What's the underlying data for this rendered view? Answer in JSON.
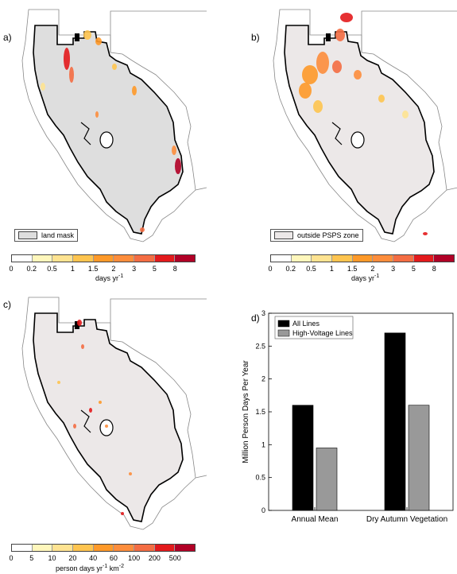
{
  "panels": {
    "a": {
      "label": "a)",
      "legend": "land mask",
      "ticks": [
        "0",
        "0.2",
        "0.5",
        "1",
        "1.5",
        "2",
        "3",
        "5",
        "8"
      ],
      "unit": "days yr",
      "unit_sup": "-1",
      "colors": [
        "#ffffff",
        "#fff7bc",
        "#fee391",
        "#fec44f",
        "#fe9929",
        "#fd8d3c",
        "#f46d43",
        "#e31a1c",
        "#b10026"
      ],
      "mask_color": "#dedede"
    },
    "b": {
      "label": "b)",
      "legend": "outside PSPS zone",
      "ticks": [
        "0",
        "0.2",
        "0.5",
        "1",
        "1.5",
        "2",
        "3",
        "5",
        "8"
      ],
      "unit": "days yr",
      "unit_sup": "-1",
      "colors": [
        "#ffffff",
        "#fff7bc",
        "#fee391",
        "#fec44f",
        "#fe9929",
        "#fd8d3c",
        "#f46d43",
        "#e31a1c",
        "#b10026"
      ],
      "mask_color": "#ece8e8"
    },
    "c": {
      "label": "c)",
      "ticks": [
        "0",
        "5",
        "10",
        "20",
        "40",
        "60",
        "100",
        "200",
        "500"
      ],
      "unit_prefix": "person days yr",
      "unit_sup1": "-1",
      "unit_mid": " km",
      "unit_sup2": "-2",
      "colors": [
        "#ffffff",
        "#fff7bc",
        "#fee391",
        "#fec44f",
        "#fe9929",
        "#fd8d3c",
        "#f46d43",
        "#e31a1c",
        "#b10026"
      ],
      "mask_color": "#ece8e8"
    },
    "d": {
      "label": "d)"
    }
  },
  "chart_data": {
    "type": "bar",
    "categories": [
      "Annual Mean",
      "Dry Autumn Vegetation"
    ],
    "series": [
      {
        "name": "All Lines",
        "values": [
          1.6,
          2.7
        ],
        "color": "#000000"
      },
      {
        "name": "High-Voltage Lines",
        "values": [
          0.95,
          1.6
        ],
        "color": "#999999"
      }
    ],
    "ylabel": "Million Person Days Per Year",
    "ylim": [
      0,
      3
    ],
    "yticks": [
      "0",
      "0.5",
      "1",
      "1.5",
      "2",
      "2.5",
      "3"
    ],
    "legend_position": "top-left"
  }
}
